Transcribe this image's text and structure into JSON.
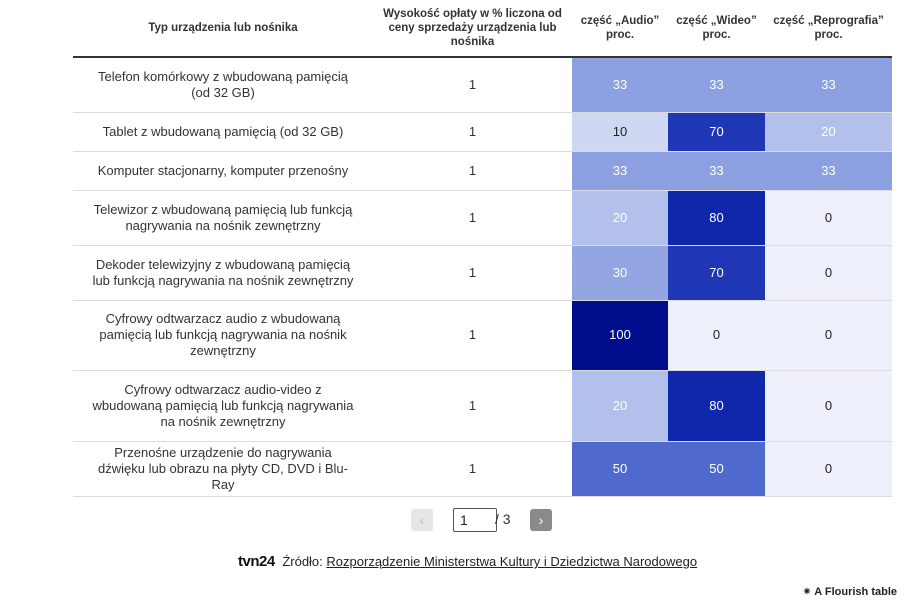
{
  "table": {
    "headers": [
      "Typ urządzenia lub nośnika",
      "Wysokość opłaty w % liczona od ceny sprzedaży urządzenia lub nośnika",
      "część „Audio” proc.",
      "część „Wideo” proc.",
      "część „Reprografia” proc."
    ],
    "rows": [
      {
        "name": "Telefon komórkowy z wbudowaną pamięcią (od 32 GB)",
        "fee": "1",
        "audio": "33",
        "video": "33",
        "repro": "33"
      },
      {
        "name": "Tablet z wbudowaną pamięcią (od 32 GB)",
        "fee": "1",
        "audio": "10",
        "video": "70",
        "repro": "20"
      },
      {
        "name": "Komputer stacjonarny, komputer przenośny",
        "fee": "1",
        "audio": "33",
        "video": "33",
        "repro": "33"
      },
      {
        "name": "Telewizor z wbudowaną pamięcią lub funkcją nagrywania na nośnik zewnętrzny",
        "fee": "1",
        "audio": "20",
        "video": "80",
        "repro": "0"
      },
      {
        "name": "Dekoder telewizyjny z wbudowaną pamięcią lub funkcją nagrywania na nośnik zewnętrzny",
        "fee": "1",
        "audio": "30",
        "video": "70",
        "repro": "0"
      },
      {
        "name": "Cyfrowy odtwarzacz audio z wbudowaną pamięcią lub funkcją nagrywania na nośnik zewnętrzny",
        "fee": "1",
        "audio": "100",
        "video": "0",
        "repro": "0"
      },
      {
        "name": "Cyfrowy odtwarzacz audio-video z wbudowaną pamięcią lub funkcją nagrywania na nośnik zewnętrzny",
        "fee": "1",
        "audio": "20",
        "video": "80",
        "repro": "0"
      },
      {
        "name": "Przenośne urządzenie do nagrywania dźwięku lub obrazu na płyty CD, DVD i Blu-Ray",
        "fee": "1",
        "audio": "50",
        "video": "50",
        "repro": "0"
      }
    ]
  },
  "colors": {
    "c0": "#eef1fb",
    "c10": "#cfd8f3",
    "c20": "#b3c0ec",
    "c30": "#93a5e3",
    "c33": "#8c9fe1",
    "c50": "#5069cc",
    "c70": "#1f37b5",
    "c80": "#0f27aa",
    "c100": "#000e8d"
  },
  "pagination": {
    "prev_symbol": "‹",
    "current_page": "1",
    "total_label": "/ 3",
    "next_symbol": "›"
  },
  "source": {
    "logo": "tvn24",
    "label": "Źródło:",
    "link_text": "Rozporządzenie Ministerstwa Kultury i Dziedzictwa Narodowego"
  },
  "credit": "A Flourish table"
}
